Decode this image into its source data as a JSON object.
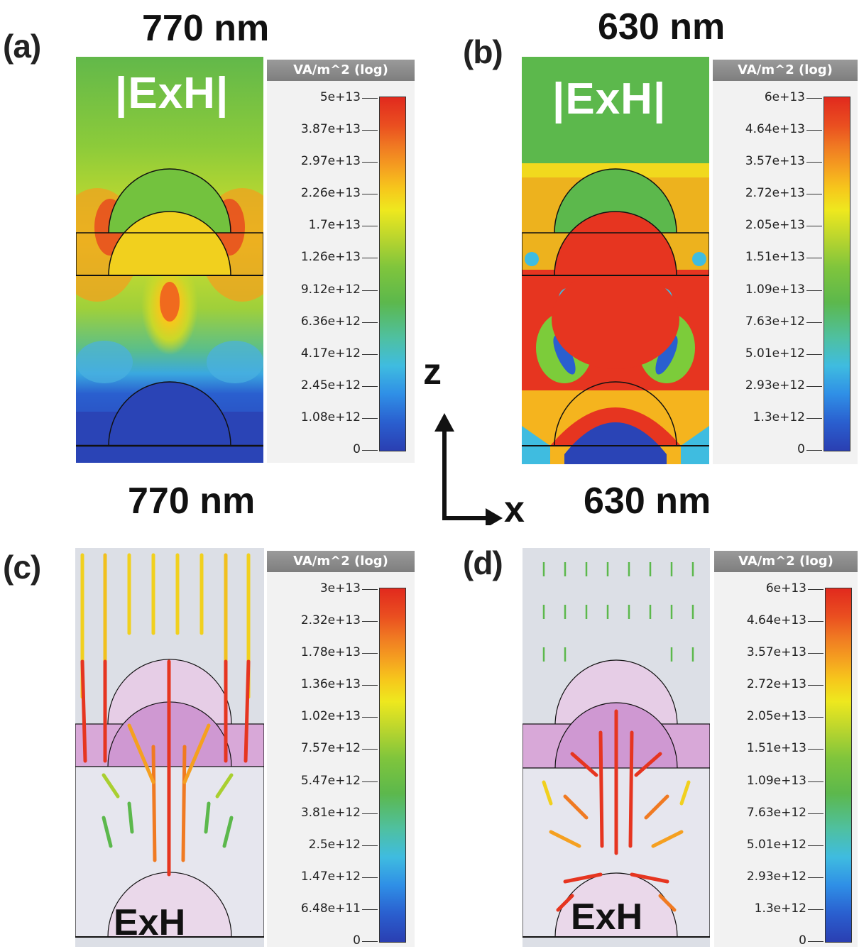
{
  "panels": {
    "a": {
      "letter": "(a)",
      "wavelength": "770 nm",
      "overlay": "|ExH|"
    },
    "b": {
      "letter": "(b)",
      "wavelength": "630 nm",
      "overlay": "|ExH|"
    },
    "c": {
      "letter": "(c)",
      "wavelength": "770 nm",
      "overlay": "ExH"
    },
    "d": {
      "letter": "(d)",
      "wavelength": "630 nm",
      "overlay": "ExH"
    }
  },
  "axes": {
    "z_label": "z",
    "x_label": "x"
  },
  "colorbars": {
    "a": {
      "unit": "VA/m^2 (log)",
      "ticks": [
        "5e+13",
        "3.87e+13",
        "2.97e+13",
        "2.26e+13",
        "1.7e+13",
        "1.26e+13",
        "9.12e+12",
        "6.36e+12",
        "4.17e+12",
        "2.45e+12",
        "1.08e+12",
        "0"
      ]
    },
    "b": {
      "unit": "VA/m^2 (log)",
      "ticks": [
        "6e+13",
        "4.64e+13",
        "3.57e+13",
        "2.72e+13",
        "2.05e+13",
        "1.51e+13",
        "1.09e+13",
        "7.63e+12",
        "5.01e+12",
        "2.93e+12",
        "1.3e+12",
        "0"
      ]
    },
    "c": {
      "unit": "VA/m^2 (log)",
      "ticks": [
        "3e+13",
        "2.32e+13",
        "1.78e+13",
        "1.36e+13",
        "1.02e+13",
        "7.57e+12",
        "5.47e+12",
        "3.81e+12",
        "2.5e+12",
        "1.47e+12",
        "6.48e+11",
        "0"
      ]
    },
    "d": {
      "unit": "VA/m^2 (log)",
      "ticks": [
        "6e+13",
        "4.64e+13",
        "3.57e+13",
        "2.72e+13",
        "2.05e+13",
        "1.51e+13",
        "1.09e+13",
        "7.63e+12",
        "5.01e+12",
        "2.93e+12",
        "1.3e+12",
        "0"
      ]
    }
  },
  "colors": {
    "high": "#e12a1e",
    "mid": "#5cb84c",
    "low": "#2a3fb2"
  }
}
